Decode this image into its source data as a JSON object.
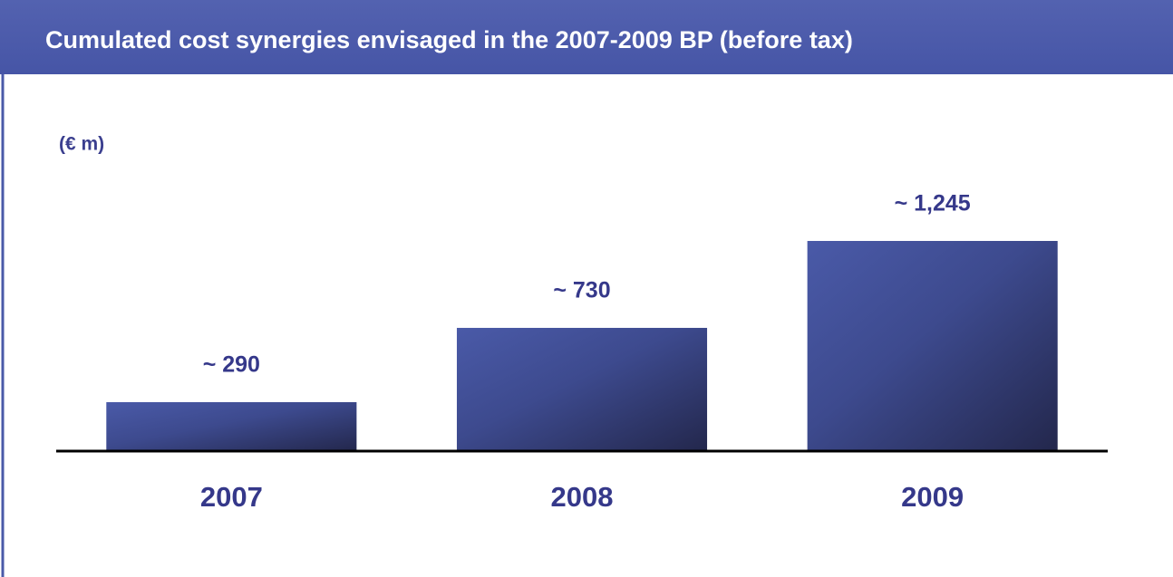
{
  "chart_data": {
    "type": "bar",
    "title": "Cumulated cost synergies envisaged in the 2007-2009 BP (before tax)",
    "unit_label": "(€ m)",
    "categories": [
      "2007",
      "2008",
      "2009"
    ],
    "values": [
      290,
      730,
      1245
    ],
    "value_labels": [
      "~ 290",
      "~ 730",
      "~ 1,245"
    ],
    "color": "#4a5aa8"
  }
}
